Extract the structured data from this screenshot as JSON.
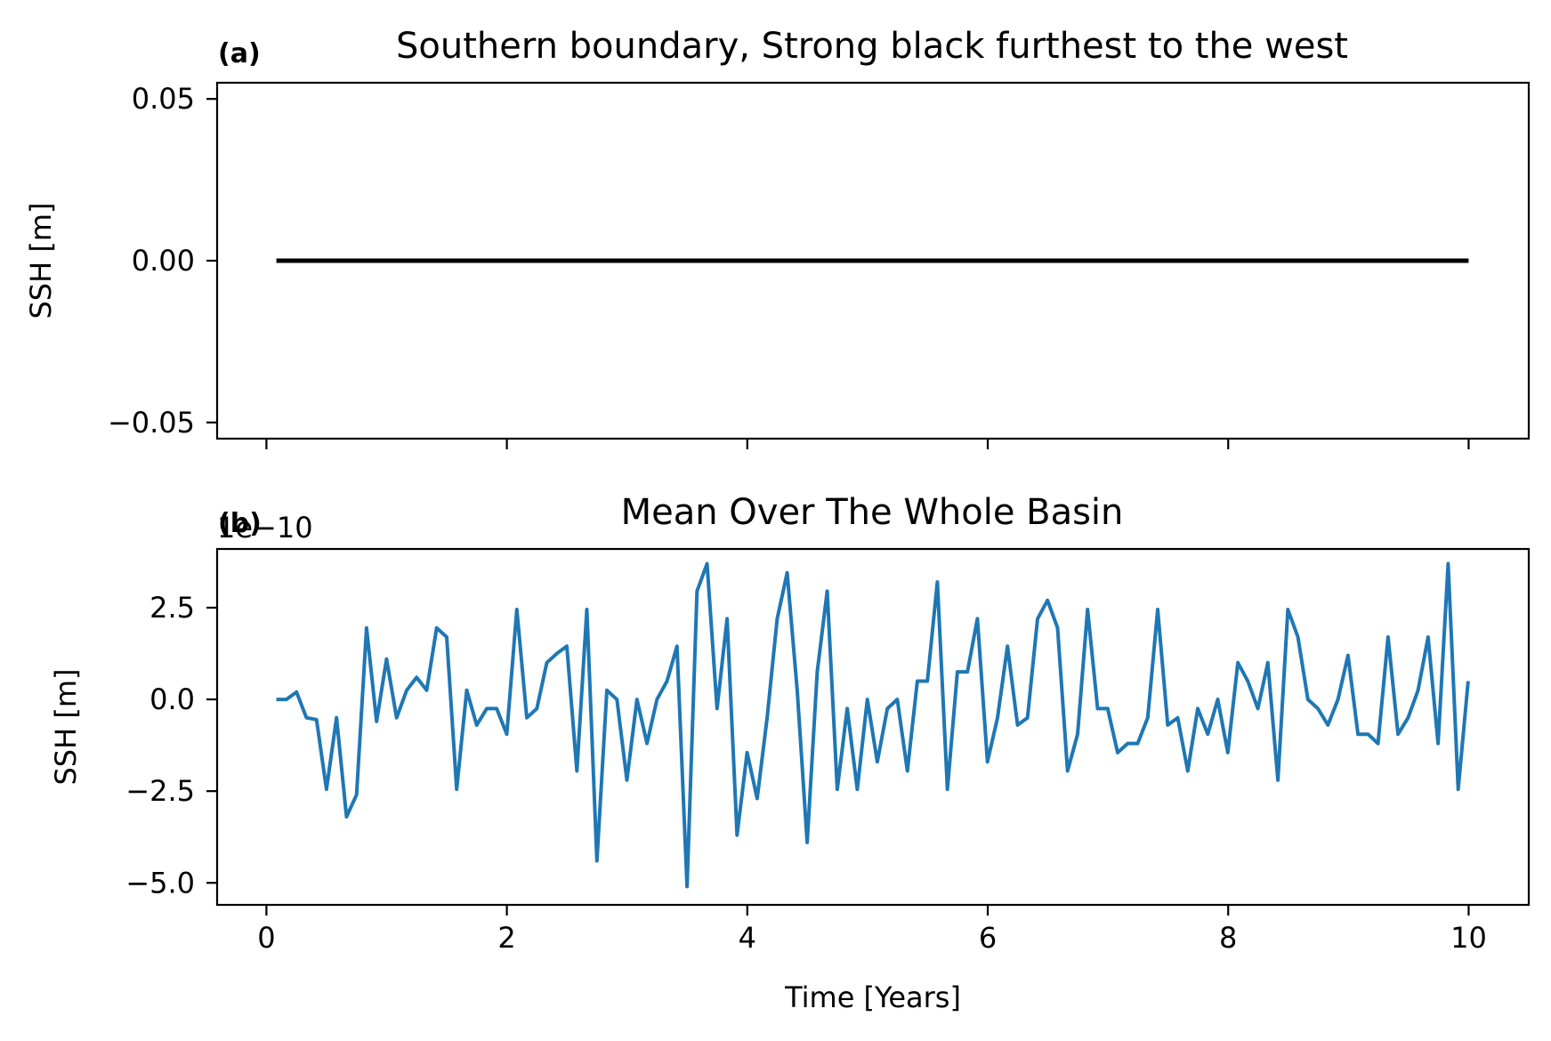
{
  "chart_data": [
    {
      "type": "line",
      "panel_label": "(a)",
      "title": "Southern boundary, Strong black furthest to the west",
      "xlabel": "",
      "ylabel": "SSH [m]",
      "xlim": [
        -0.41,
        10.5
      ],
      "ylim": [
        -0.055,
        0.055
      ],
      "xticks": [
        0,
        2,
        4,
        6,
        8,
        10
      ],
      "show_xtick_labels": false,
      "yticks": [
        -0.05,
        0.0,
        0.05
      ],
      "ytick_labels": [
        "−0.05",
        "0.00",
        "0.05"
      ],
      "grid": false,
      "series": [
        {
          "color": "#000000",
          "linewidth": 5,
          "x": [
            0.0833,
            10.0
          ],
          "y": [
            0.0,
            0.0
          ]
        }
      ]
    },
    {
      "type": "line",
      "panel_label": "(b)",
      "title": "Mean Over The Whole Basin",
      "offset_text": "1e−10",
      "xlabel": "Time [Years]",
      "ylabel": "SSH [m]",
      "xlim": [
        -0.41,
        10.5
      ],
      "ylim": [
        -5.6,
        4.1
      ],
      "xticks": [
        0,
        2,
        4,
        6,
        8,
        10
      ],
      "xtick_labels": [
        "0",
        "2",
        "4",
        "6",
        "8",
        "10"
      ],
      "yticks": [
        -5.0,
        -2.5,
        0.0,
        2.5
      ],
      "ytick_labels": [
        "−5.0",
        "−2.5",
        "0.0",
        "2.5"
      ],
      "grid": false,
      "series": [
        {
          "color": "#1f77b4",
          "linewidth": 4,
          "x_start": 0.0833,
          "x_step": 0.0833,
          "y": [
            0.0,
            0.0,
            0.2,
            -0.5,
            -0.55,
            -2.45,
            -0.5,
            -3.2,
            -2.6,
            1.95,
            -0.6,
            1.1,
            -0.5,
            0.25,
            0.6,
            0.25,
            1.95,
            1.7,
            -2.45,
            0.25,
            -0.7,
            -0.25,
            -0.25,
            -0.95,
            2.45,
            -0.5,
            -0.25,
            1.0,
            1.25,
            1.45,
            -1.95,
            2.45,
            -4.4,
            0.25,
            0.0,
            -2.2,
            0.0,
            -1.2,
            0.0,
            0.5,
            1.45,
            -5.1,
            2.95,
            3.7,
            -0.25,
            2.2,
            -3.7,
            -1.45,
            -2.7,
            -0.5,
            2.2,
            3.45,
            0.25,
            -3.9,
            0.75,
            2.95,
            -2.45,
            -0.25,
            -2.45,
            0.0,
            -1.7,
            -0.25,
            0.0,
            -1.95,
            0.5,
            0.5,
            3.2,
            -2.45,
            0.75,
            0.75,
            2.2,
            -1.7,
            -0.5,
            1.45,
            -0.7,
            -0.5,
            2.2,
            2.7,
            1.95,
            -1.95,
            -0.95,
            2.45,
            -0.25,
            -0.25,
            -1.45,
            -1.2,
            -1.2,
            -0.5,
            2.45,
            -0.7,
            -0.5,
            -1.95,
            -0.25,
            -0.95,
            0.0,
            -1.45,
            1.0,
            0.5,
            -0.25,
            1.0,
            -2.2,
            2.45,
            1.7,
            0.0,
            -0.25,
            -0.7,
            0.0,
            1.2,
            -0.95,
            -0.95,
            -1.2,
            1.7,
            -0.95,
            -0.5,
            0.25,
            1.7,
            -1.2,
            3.7,
            -2.45,
            0.5
          ]
        }
      ]
    }
  ]
}
